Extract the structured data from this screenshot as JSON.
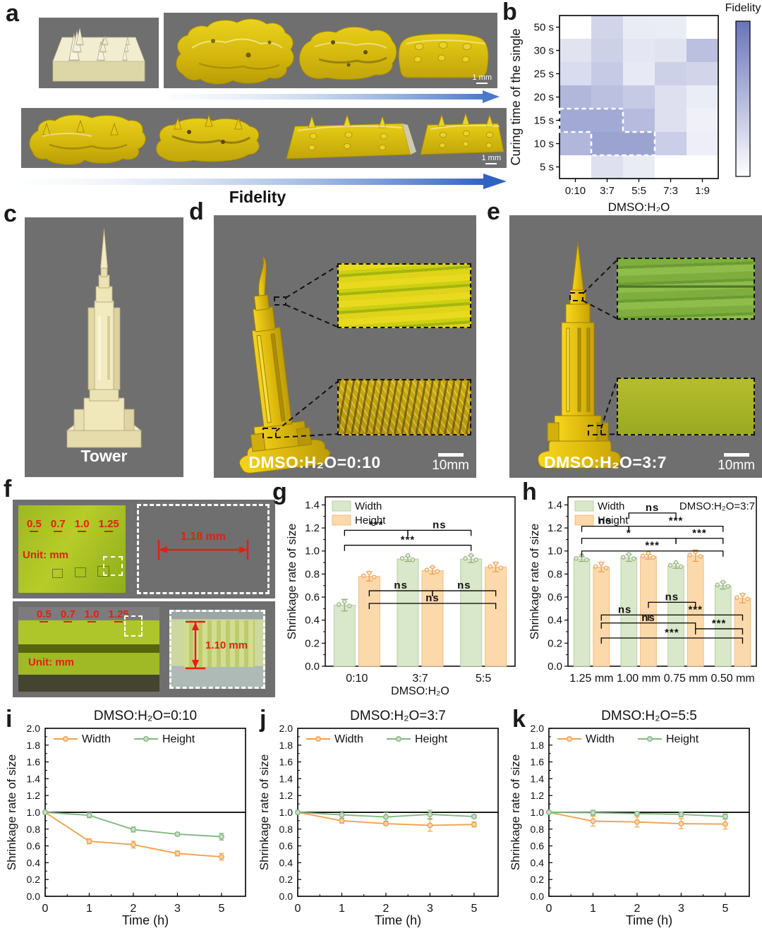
{
  "figure": {
    "background": "#ffffff",
    "photo_background": "#6f6f6f"
  },
  "panels": {
    "a": {
      "label": "a",
      "fidelity_label": "Fidelity",
      "scale_bar_1": "1 mm",
      "scale_bar_2": "1 mm"
    },
    "b": {
      "label": "b"
    },
    "c": {
      "label": "c",
      "caption": "Tower"
    },
    "d": {
      "label": "d",
      "caption": "DMSO:H₂O=0:10",
      "scale_bar": "10mm"
    },
    "e": {
      "label": "e",
      "caption": "DMSO:H₂O=3:7",
      "scale_bar": "10mm"
    },
    "f": {
      "label": "f",
      "sizes": [
        "0.5",
        "0.7",
        "1.0",
        "1.25"
      ],
      "unit_top": "Unit: mm",
      "unit_bottom": "Unit: mm",
      "measure_top": "1.18 mm",
      "measure_bottom": "1.10 mm"
    },
    "g": {
      "label": "g"
    },
    "h": {
      "label": "h"
    },
    "i": {
      "label": "i"
    },
    "j": {
      "label": "j"
    },
    "k": {
      "label": "k"
    }
  },
  "chart_data": [
    {
      "panel": "b",
      "type": "heatmap",
      "rows": [
        "50 s",
        "30 s",
        "25 s",
        "20 s",
        "15 s",
        "10 s",
        "5 s"
      ],
      "cols": [
        "0:10",
        "3:7",
        "5:5",
        "7:3",
        "1:9"
      ],
      "values": [
        [
          0.0,
          0.3,
          0.14,
          0.13,
          0.0
        ],
        [
          0.2,
          0.33,
          0.18,
          0.2,
          0.45
        ],
        [
          0.25,
          0.38,
          0.16,
          0.33,
          0.3
        ],
        [
          0.52,
          0.45,
          0.38,
          0.22,
          0.13
        ],
        [
          0.62,
          0.62,
          0.48,
          0.22,
          0.1
        ],
        [
          0.52,
          0.66,
          0.66,
          0.35,
          0.12
        ],
        [
          0.0,
          0.22,
          0.14,
          0.0,
          0.0
        ]
      ],
      "xlabel": "DMSO:H₂O",
      "ylabel": "Curing time of the single",
      "colorbar_label": "Fidelity",
      "max_color": "#6874ba",
      "highlight_region": "white dashed outline around 15 s × (0:10,3:7) and 10 s × (3:7,5:5)"
    },
    {
      "panel": "g",
      "type": "bar",
      "categories": [
        "0:10",
        "3:7",
        "5:5"
      ],
      "xlabel": "DMSO:H₂O",
      "ylabel": "Shrinkage rate of size",
      "ylim": [
        0,
        1.4
      ],
      "legend": [
        "Width",
        "Height"
      ],
      "series": [
        {
          "name": "Width",
          "values": [
            0.53,
            0.93,
            0.93
          ],
          "errors": [
            0.05,
            0.02,
            0.03
          ]
        },
        {
          "name": "Height",
          "values": [
            0.78,
            0.83,
            0.86
          ],
          "errors": [
            0.04,
            0.03,
            0.04
          ]
        }
      ],
      "brackets": [
        {
          "a": [
            0,
            0
          ],
          "b": [
            1,
            0
          ],
          "y": 1.18,
          "label": "***"
        },
        {
          "a": [
            1,
            0
          ],
          "b": [
            2,
            0
          ],
          "y": 1.18,
          "label": "ns"
        },
        {
          "a": [
            0,
            0
          ],
          "b": [
            2,
            0
          ],
          "y": 1.05,
          "label": "***"
        },
        {
          "a": [
            0,
            1
          ],
          "b": [
            1,
            1
          ],
          "y": 0.655,
          "label": "ns"
        },
        {
          "a": [
            1,
            1
          ],
          "b": [
            2,
            1
          ],
          "y": 0.655,
          "label": "ns"
        },
        {
          "a": [
            0,
            1
          ],
          "b": [
            2,
            1
          ],
          "y": 0.545,
          "label": "ns"
        }
      ]
    },
    {
      "panel": "h",
      "type": "bar",
      "categories": [
        "1.25 mm",
        "1.00 mm",
        "0.75 mm",
        "0.50 mm"
      ],
      "xlabel": "",
      "ylabel": "Shrinkage rate of size",
      "ylim": [
        0,
        1.4
      ],
      "legend": [
        "Width",
        "Height"
      ],
      "annotation": "DMSO:H₂O=3:7",
      "series": [
        {
          "name": "Width",
          "values": [
            0.93,
            0.94,
            0.87,
            0.7
          ],
          "errors": [
            0.02,
            0.03,
            0.02,
            0.03
          ]
        },
        {
          "name": "Height",
          "values": [
            0.86,
            0.95,
            0.96,
            0.59
          ],
          "errors": [
            0.04,
            0.02,
            0.05,
            0.04
          ]
        }
      ],
      "brackets": [
        {
          "a": [
            1,
            0
          ],
          "b": [
            2,
            0
          ],
          "y": 1.33,
          "label": "ns"
        },
        {
          "a": [
            0,
            0
          ],
          "b": [
            1,
            0
          ],
          "y": 1.215,
          "label": "ns"
        },
        {
          "a": [
            1,
            0
          ],
          "b": [
            3,
            0
          ],
          "y": 1.215,
          "label": "***"
        },
        {
          "a": [
            0,
            0
          ],
          "b": [
            2,
            0
          ],
          "y": 1.11,
          "label": "*"
        },
        {
          "a": [
            2,
            0
          ],
          "b": [
            3,
            0
          ],
          "y": 1.11,
          "label": "***"
        },
        {
          "a": [
            0,
            0
          ],
          "b": [
            3,
            0
          ],
          "y": 1.0,
          "label": "***"
        },
        {
          "a": [
            1,
            1
          ],
          "b": [
            2,
            1
          ],
          "y": 0.555,
          "label": "ns"
        },
        {
          "a": [
            0,
            1
          ],
          "b": [
            1,
            1
          ],
          "y": 0.445,
          "label": "ns"
        },
        {
          "a": [
            1,
            1
          ],
          "b": [
            3,
            1
          ],
          "y": 0.445,
          "label": "***"
        },
        {
          "a": [
            0,
            1
          ],
          "b": [
            2,
            1
          ],
          "y": 0.375,
          "label": "ns"
        },
        {
          "a": [
            2,
            1
          ],
          "b": [
            3,
            1
          ],
          "y": 0.325,
          "label": "***"
        },
        {
          "a": [
            0,
            1
          ],
          "b": [
            3,
            1
          ],
          "y": 0.245,
          "label": "***"
        }
      ]
    },
    {
      "panel": "i",
      "type": "line",
      "title": "DMSO:H₂O=0:10",
      "x": [
        0,
        1,
        2,
        3,
        5
      ],
      "xlabel": "Time (h)",
      "ylabel": "Shrinkage rate of size",
      "ylim": [
        0,
        2.0
      ],
      "refline": 1.0,
      "legend": [
        "Width",
        "Height"
      ],
      "series": [
        {
          "name": "Width",
          "values": [
            1.0,
            0.655,
            0.615,
            0.51,
            0.47
          ],
          "errors": [
            0,
            0.03,
            0.04,
            0.03,
            0.04
          ]
        },
        {
          "name": "Height",
          "values": [
            1.0,
            0.965,
            0.795,
            0.74,
            0.71
          ],
          "errors": [
            0,
            0.03,
            0.03,
            0.02,
            0.04
          ]
        }
      ]
    },
    {
      "panel": "j",
      "type": "line",
      "title": "DMSO:H₂O=3:7",
      "x": [
        0,
        1,
        2,
        3,
        5
      ],
      "xlabel": "Time (h)",
      "ylabel": "Shrinkage rate of size",
      "ylim": [
        0,
        2.0
      ],
      "refline": 1.0,
      "legend": [
        "Width",
        "Height"
      ],
      "series": [
        {
          "name": "Width",
          "values": [
            1.0,
            0.9,
            0.865,
            0.845,
            0.855
          ],
          "errors": [
            0,
            0.03,
            0.02,
            0.07,
            0.03
          ]
        },
        {
          "name": "Height",
          "values": [
            1.0,
            0.97,
            0.945,
            0.975,
            0.95
          ],
          "errors": [
            0,
            0.04,
            0.05,
            0.05,
            0.02
          ]
        }
      ]
    },
    {
      "panel": "k",
      "type": "line",
      "title": "DMSO:H₂O=5:5",
      "x": [
        0,
        1,
        2,
        3,
        5
      ],
      "xlabel": "Time (h)",
      "ylabel": "Shrinkage rate of size",
      "ylim": [
        0,
        2.0
      ],
      "refline": 1.0,
      "legend": [
        "Width",
        "Height"
      ],
      "series": [
        {
          "name": "Width",
          "values": [
            1.0,
            0.895,
            0.885,
            0.865,
            0.86
          ],
          "errors": [
            0,
            0.06,
            0.06,
            0.06,
            0.06
          ]
        },
        {
          "name": "Height",
          "values": [
            1.0,
            0.995,
            0.985,
            0.975,
            0.95
          ],
          "errors": [
            0,
            0.03,
            0.02,
            0.03,
            0.03
          ]
        }
      ]
    }
  ],
  "colors": {
    "bar_width_fill": "#d9e7ca",
    "bar_width_edge": "#b9d0a2",
    "bar_width_dark": "#8fae77",
    "bar_height_fill": "#fcd9ab",
    "bar_height_edge": "#f3bd80",
    "bar_height_dark": "#eb9e4e",
    "line_width": "#f2a24b",
    "line_height": "#84b881",
    "heat_max": "#6874ba",
    "arrow_blue": "#3f6fc6",
    "annotation_red": "#e02015"
  }
}
